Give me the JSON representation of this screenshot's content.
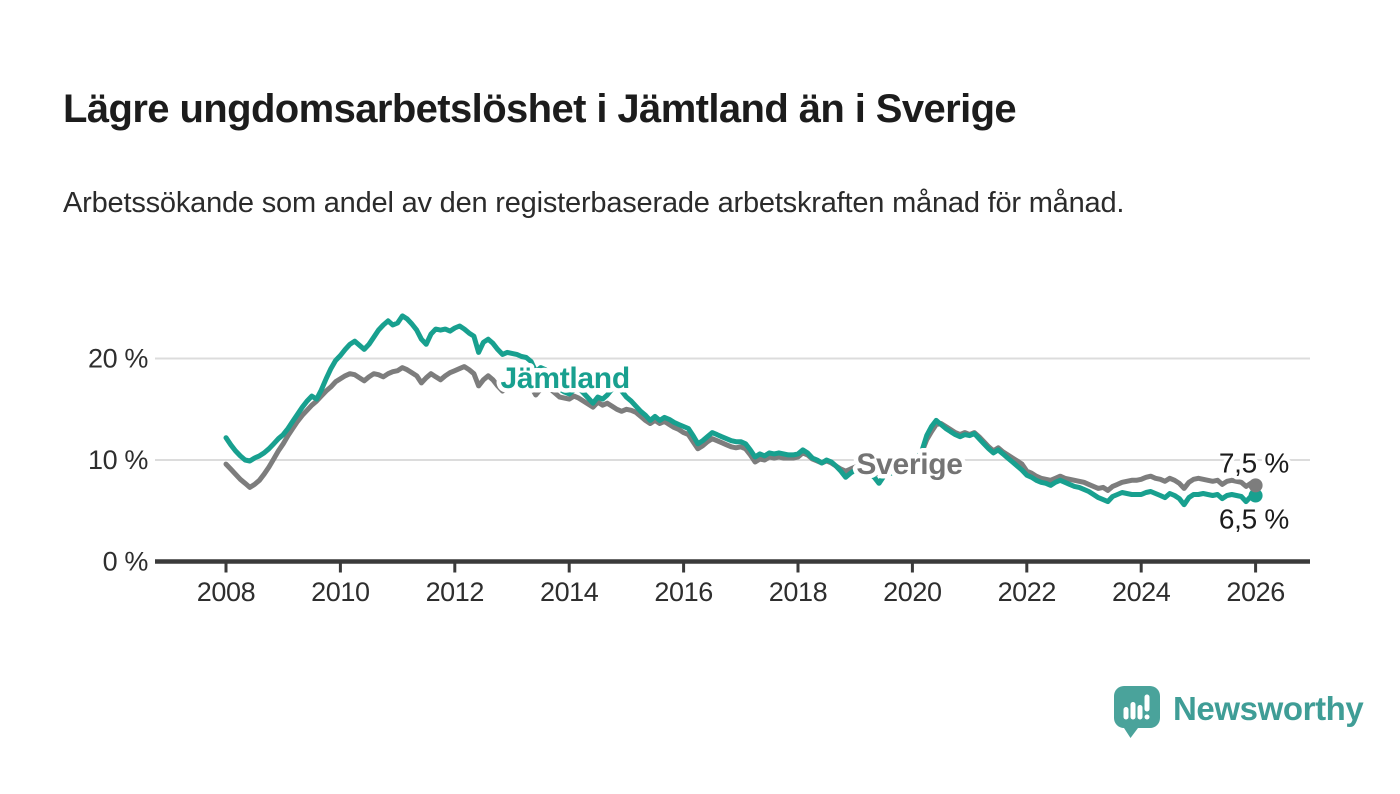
{
  "header": {
    "title": "Lägre ungdomsarbetslöshet i Jämtland än i Sverige",
    "subtitle": "Arbetssökande som andel av den registerbaserade arbetskraften månad för månad."
  },
  "footer": {
    "brand": "Newsworthy",
    "brand_color": "#3f9d96",
    "logo_icon": "bar-chart-speech-bubble"
  },
  "chart_data": {
    "type": "line",
    "title": "Lägre ungdomsarbetslöshet i Jämtland än i Sverige",
    "subtitle": "Arbetssökande som andel av den registerbaserade arbetskraften månad för månad.",
    "x_unit": "month",
    "x_start": 2008.0,
    "x_end": 2026.0,
    "ylim": [
      0,
      26
    ],
    "grid": "horizontal",
    "x_ticks": [
      2008,
      2010,
      2012,
      2014,
      2016,
      2018,
      2020,
      2022,
      2024,
      2026
    ],
    "y_ticks": [
      {
        "value": 0,
        "label": "0 %"
      },
      {
        "value": 10,
        "label": "10 %"
      },
      {
        "value": 20,
        "label": "20 %"
      }
    ],
    "colors": {
      "grid": "#dcdcdc",
      "axis": "#3a3a3a"
    },
    "series": [
      {
        "id": "sverige",
        "name": "Sverige",
        "color": "#7d7d7d",
        "label_color": "#747474",
        "inline_label": {
          "text": "Sverige",
          "t": 2019.02,
          "v": 8.6
        },
        "end_label": "7,5 %",
        "end_label_position": "above",
        "end_value": 7.5,
        "values": [
          9.6,
          9.1,
          8.6,
          8.1,
          7.7,
          7.3,
          7.6,
          8.0,
          8.6,
          9.3,
          10.1,
          10.9,
          11.6,
          12.4,
          13.1,
          13.8,
          14.4,
          14.9,
          15.4,
          15.8,
          16.3,
          16.8,
          17.2,
          17.7,
          18.0,
          18.3,
          18.5,
          18.4,
          18.1,
          17.8,
          18.2,
          18.5,
          18.4,
          18.2,
          18.5,
          18.7,
          18.8,
          19.1,
          18.9,
          18.6,
          18.3,
          17.6,
          18.1,
          18.5,
          18.2,
          17.9,
          18.3,
          18.6,
          18.8,
          19.0,
          19.2,
          18.9,
          18.5,
          17.3,
          17.9,
          18.3,
          17.9,
          17.3,
          16.8,
          17.1,
          17.4,
          17.7,
          17.9,
          17.6,
          17.2,
          16.4,
          17.0,
          17.3,
          17.0,
          16.6,
          16.2,
          16.1,
          16.0,
          16.3,
          16.1,
          15.8,
          15.5,
          15.2,
          15.7,
          15.4,
          15.6,
          15.3,
          15.0,
          14.8,
          15.0,
          14.9,
          14.7,
          14.3,
          13.9,
          13.6,
          13.9,
          13.6,
          13.8,
          13.5,
          13.2,
          13.0,
          12.7,
          12.5,
          11.8,
          11.1,
          11.4,
          11.8,
          12.1,
          11.9,
          11.7,
          11.5,
          11.3,
          11.2,
          11.3,
          11.1,
          10.5,
          9.8,
          10.1,
          10.0,
          10.3,
          10.2,
          10.3,
          10.2,
          10.2,
          10.2,
          10.3,
          10.7,
          10.5,
          10.1,
          9.9,
          9.7,
          9.9,
          9.7,
          9.4,
          9.1,
          8.9,
          9.1,
          9.3,
          9.4,
          9.2,
          9.0,
          8.8,
          8.6,
          8.9,
          8.8,
          9.0,
          9.2,
          9.4,
          9.7,
          10.0,
          10.2,
          10.8,
          12.0,
          12.8,
          13.5,
          13.6,
          13.3,
          13.0,
          12.7,
          12.5,
          12.7,
          12.5,
          12.7,
          12.3,
          11.8,
          11.3,
          10.9,
          11.2,
          10.8,
          10.5,
          10.2,
          9.9,
          9.6,
          8.9,
          8.7,
          8.4,
          8.2,
          8.1,
          8.0,
          8.2,
          8.4,
          8.2,
          8.1,
          8.0,
          7.9,
          7.8,
          7.6,
          7.4,
          7.2,
          7.3,
          7.0,
          7.4,
          7.6,
          7.8,
          7.9,
          8.0,
          8.0,
          8.1,
          8.3,
          8.4,
          8.2,
          8.1,
          7.9,
          8.2,
          8.0,
          7.7,
          7.2,
          7.8,
          8.1,
          8.2,
          8.1,
          8.0,
          7.9,
          8.0,
          7.6,
          7.9,
          8.0,
          7.9,
          7.8,
          7.4,
          7.7,
          7.5
        ]
      },
      {
        "id": "jamtland",
        "name": "Jämtland",
        "color": "#18a08f",
        "label_color": "#18a08f",
        "inline_label": {
          "text": "Jämtland",
          "t": 2012.8,
          "v": 17.1
        },
        "end_label": "6,5 %",
        "end_label_position": "below",
        "end_value": 6.5,
        "values": [
          12.2,
          11.5,
          10.9,
          10.4,
          10.0,
          9.9,
          10.2,
          10.4,
          10.7,
          11.1,
          11.6,
          12.1,
          12.5,
          13.1,
          13.8,
          14.5,
          15.2,
          15.8,
          16.3,
          16.0,
          16.9,
          18.0,
          19.0,
          19.8,
          20.3,
          20.9,
          21.4,
          21.7,
          21.3,
          20.9,
          21.4,
          22.1,
          22.8,
          23.3,
          23.7,
          23.3,
          23.5,
          24.2,
          23.9,
          23.4,
          22.8,
          21.9,
          21.4,
          22.4,
          22.9,
          22.8,
          22.9,
          22.7,
          23.0,
          23.2,
          22.9,
          22.5,
          22.2,
          20.6,
          21.6,
          21.9,
          21.5,
          20.9,
          20.4,
          20.6,
          20.5,
          20.4,
          20.2,
          20.1,
          19.7,
          18.7,
          19.1,
          18.9,
          18.3,
          17.6,
          17.0,
          16.7,
          16.5,
          16.9,
          17.1,
          16.6,
          16.1,
          15.6,
          16.2,
          16.0,
          16.4,
          17.0,
          17.3,
          16.8,
          16.2,
          15.8,
          15.3,
          14.8,
          14.4,
          13.9,
          14.3,
          13.9,
          14.2,
          14.0,
          13.7,
          13.5,
          13.3,
          13.1,
          12.4,
          11.6,
          11.9,
          12.3,
          12.7,
          12.5,
          12.3,
          12.1,
          11.9,
          11.8,
          11.8,
          11.6,
          11.0,
          10.3,
          10.6,
          10.4,
          10.7,
          10.6,
          10.7,
          10.6,
          10.5,
          10.5,
          10.6,
          11.0,
          10.7,
          10.2,
          10.0,
          9.7,
          10.0,
          9.8,
          9.4,
          8.9,
          8.3,
          8.7,
          9.0,
          9.1,
          8.9,
          8.7,
          8.3,
          7.7,
          8.4,
          8.6,
          8.8,
          9.0,
          9.2,
          9.5,
          9.9,
          10.1,
          10.9,
          12.4,
          13.3,
          13.9,
          13.5,
          13.1,
          12.8,
          12.5,
          12.3,
          12.5,
          12.4,
          12.6,
          12.1,
          11.6,
          11.1,
          10.7,
          11.0,
          10.6,
          10.2,
          9.8,
          9.4,
          9.0,
          8.5,
          8.3,
          8.0,
          7.8,
          7.7,
          7.5,
          7.8,
          8.0,
          7.8,
          7.6,
          7.4,
          7.3,
          7.1,
          6.9,
          6.6,
          6.3,
          6.1,
          5.9,
          6.4,
          6.6,
          6.8,
          6.7,
          6.6,
          6.6,
          6.6,
          6.8,
          6.9,
          6.7,
          6.5,
          6.3,
          6.7,
          6.5,
          6.2,
          5.6,
          6.3,
          6.6,
          6.6,
          6.7,
          6.6,
          6.5,
          6.6,
          6.2,
          6.5,
          6.6,
          6.5,
          6.4,
          5.9,
          6.4,
          6.5
        ]
      }
    ]
  }
}
